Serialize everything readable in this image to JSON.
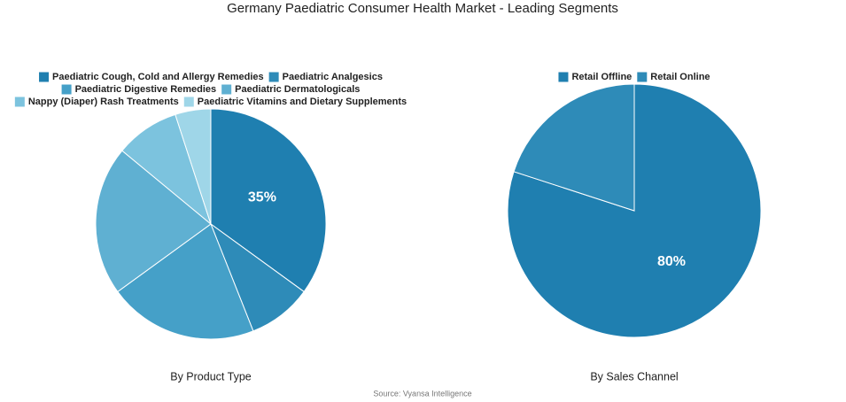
{
  "title": "Germany Paediatric Consumer Health Market - Leading Segments",
  "source": "Source: Vyansa Intelligence",
  "chart_data": [
    {
      "type": "pie",
      "subtitle": "By Product Type",
      "categories": [
        "Paediatric Cough, Cold and Allergy Remedies",
        "Paediatric Analgesics",
        "Paediatric Digestive Remedies",
        "Paediatric Dermatologicals",
        "Nappy (Diaper) Rash Treatments",
        "Paediatric Vitamins and Dietary Supplements"
      ],
      "values": [
        35,
        9,
        21,
        21,
        9,
        5
      ],
      "value_labels": [
        "35%",
        null,
        null,
        null,
        null,
        null
      ],
      "colors": [
        "#1f7fb0",
        "#2e8bb8",
        "#45a0c8",
        "#5fb0d2",
        "#7cc3de",
        "#9fd6e8"
      ]
    },
    {
      "type": "pie",
      "subtitle": "By Sales Channel",
      "categories": [
        "Retail Offline",
        "Retail Online"
      ],
      "values": [
        80,
        20
      ],
      "value_labels": [
        "80%",
        null
      ],
      "colors": [
        "#1f7fb0",
        "#2e8bb8"
      ]
    }
  ]
}
